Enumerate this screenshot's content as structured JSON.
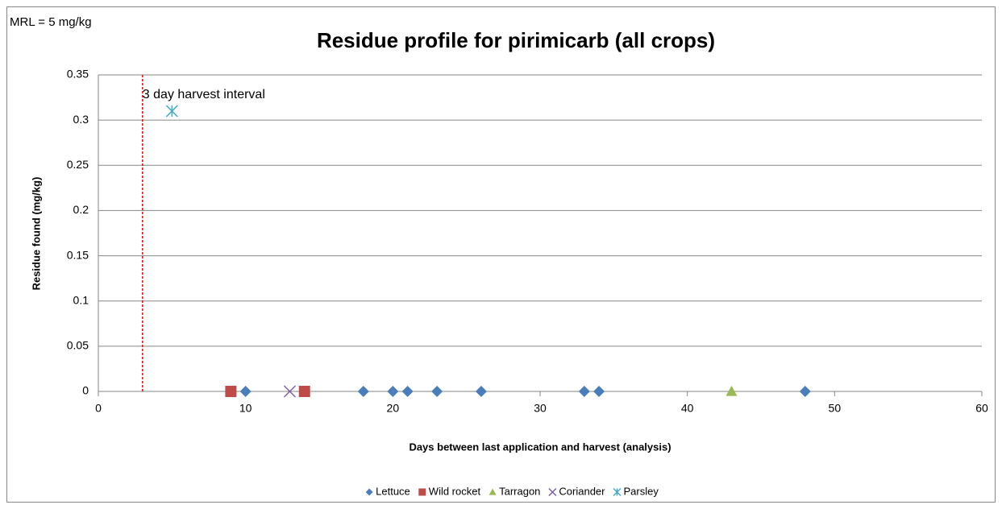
{
  "chart_data": {
    "type": "scatter",
    "title": "Residue profile for pirimicarb (all crops)",
    "note": "MRL = 5 mg/kg",
    "x_label": "Days between last application  and harvest (analysis)",
    "y_label": "Residue found (mg/kg)",
    "xlim": [
      0,
      60
    ],
    "xticks": [
      0,
      10,
      20,
      30,
      40,
      50,
      60
    ],
    "ylim": [
      0,
      0.35
    ],
    "yticks": [
      0,
      0.05,
      0.1,
      0.15,
      0.2,
      0.25,
      0.3,
      0.35
    ],
    "grid": true,
    "reference_line": {
      "x": 3,
      "color": "#ff0000",
      "label": "3 day harvest interval"
    },
    "legend": "bottom",
    "series": [
      {
        "name": "Lettuce",
        "color": "#4a7ebb",
        "marker": "diamond",
        "x": [
          10,
          18,
          20,
          21,
          23,
          26,
          33,
          34,
          48
        ],
        "values": [
          0,
          0,
          0,
          0,
          0,
          0,
          0,
          0,
          0
        ]
      },
      {
        "name": "Wild rocket",
        "color": "#be4b48",
        "marker": "square",
        "x": [
          9,
          14
        ],
        "values": [
          0,
          0
        ]
      },
      {
        "name": "Tarragon",
        "color": "#98b954",
        "marker": "triangle",
        "x": [
          43
        ],
        "values": [
          0
        ]
      },
      {
        "name": "Coriander",
        "color": "#7d60a0",
        "marker": "x",
        "x": [
          13
        ],
        "values": [
          0
        ]
      },
      {
        "name": "Parsley",
        "color": "#46aac5",
        "marker": "star",
        "x": [
          5
        ],
        "values": [
          0.31
        ]
      }
    ]
  }
}
